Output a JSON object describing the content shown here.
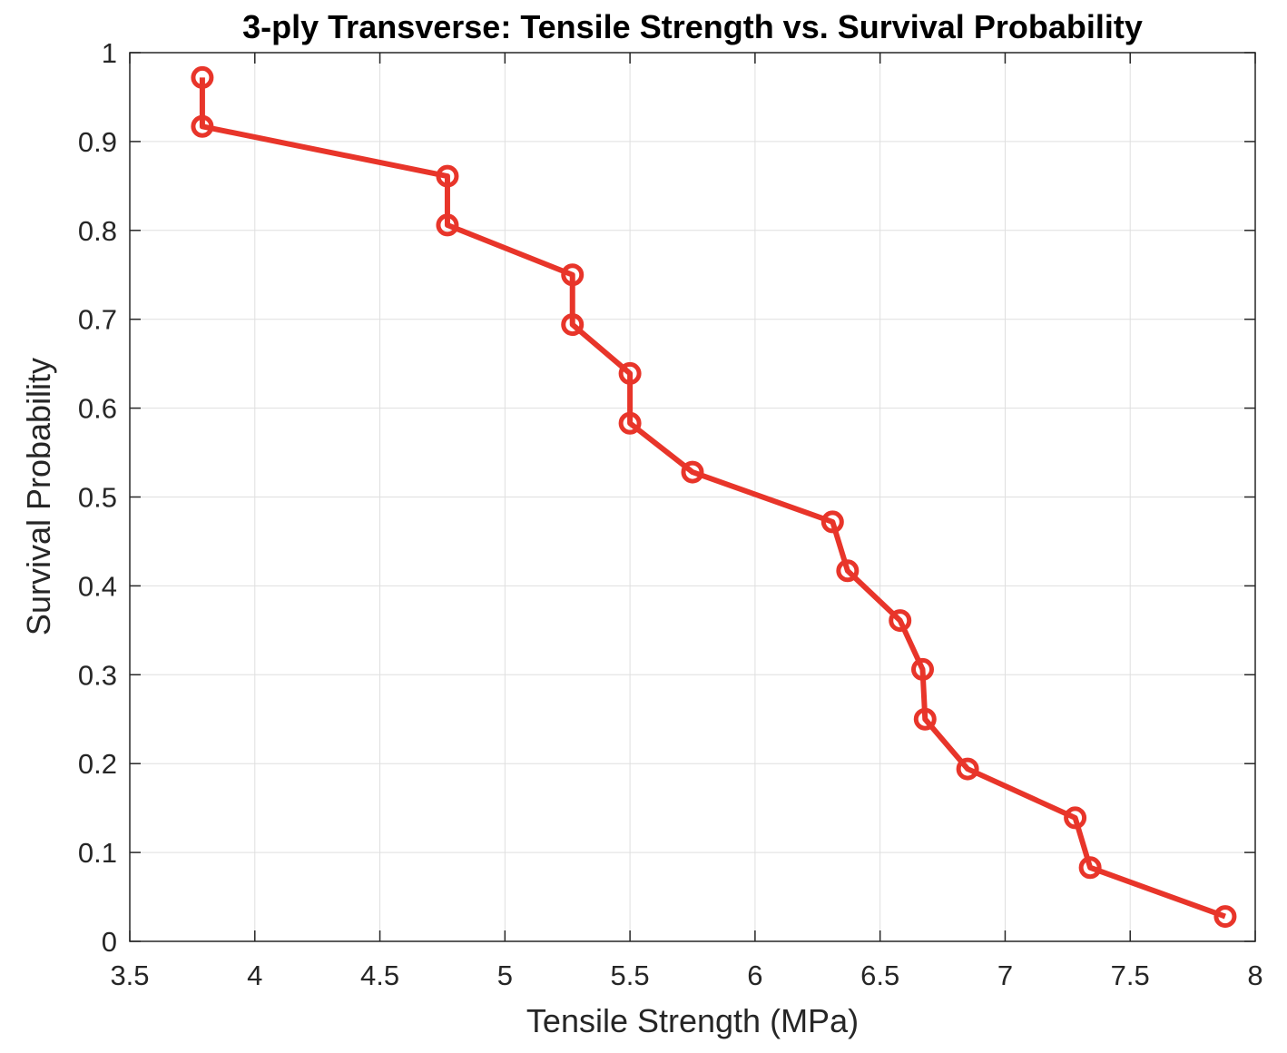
{
  "chart_data": {
    "type": "line",
    "title": "3-ply Transverse: Tensile Strength vs. Survival Probability",
    "xlabel": "Tensile Strength (MPa)",
    "ylabel": "Survival Probability",
    "xlim": [
      3.5,
      8
    ],
    "ylim": [
      0,
      1
    ],
    "xticks": [
      "3.5",
      "4",
      "4.5",
      "5",
      "5.5",
      "6",
      "6.5",
      "7",
      "7.5",
      "8"
    ],
    "yticks": [
      "0",
      "0.1",
      "0.2",
      "0.3",
      "0.4",
      "0.5",
      "0.6",
      "0.7",
      "0.8",
      "0.9",
      "1"
    ],
    "grid": true,
    "marker": "circle",
    "color": "#e8352a",
    "series": [
      {
        "x": [
          3.79,
          3.79,
          4.77,
          4.77,
          5.27,
          5.27,
          5.5,
          5.5,
          5.75,
          6.31,
          6.37,
          6.58,
          6.67,
          6.68,
          6.85,
          7.28,
          7.34,
          7.88
        ],
        "y": [
          0.972,
          0.917,
          0.861,
          0.806,
          0.75,
          0.694,
          0.639,
          0.583,
          0.528,
          0.472,
          0.417,
          0.361,
          0.306,
          0.25,
          0.194,
          0.139,
          0.083,
          0.028
        ]
      }
    ]
  }
}
